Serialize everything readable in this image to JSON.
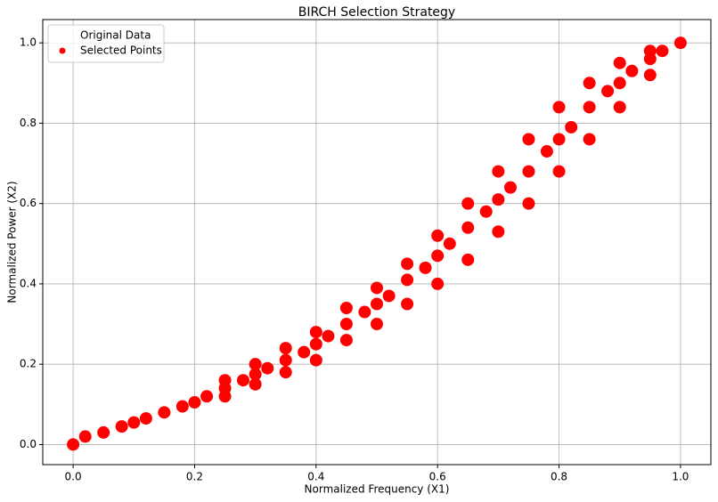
{
  "chart_data": {
    "type": "scatter",
    "title": "BIRCH Selection Strategy",
    "x_label": "Normalized Frequency (X1)",
    "y_label": "Normalized Power (X2)",
    "xlim": [
      -0.05,
      1.05
    ],
    "ylim": [
      -0.05,
      1.058
    ],
    "xticks": [
      {
        "value": 0,
        "label": "0.0"
      },
      0.2,
      0.4,
      0.6,
      0.8,
      {
        "value": 1,
        "label": "1.0"
      }
    ],
    "yticks": [
      {
        "value": 0,
        "label": "0.0"
      },
      0.2,
      0.4,
      0.6,
      0.8,
      {
        "value": 1,
        "label": "1.0"
      }
    ],
    "grid": true,
    "legend": "upper left",
    "series": [
      {
        "name": "Original Data",
        "color": "#ffffff",
        "x": [],
        "y": []
      },
      {
        "name": "Selected Points",
        "color": "#ff0000",
        "x": [
          0,
          0.02,
          0.05,
          0.08,
          0.1,
          0.12,
          0.15,
          0.18,
          0.2,
          0.22,
          0.25,
          0.28,
          0.3,
          0.32,
          0.35,
          0.38,
          0.4,
          0.42,
          0.45,
          0.48,
          0.5,
          0.52,
          0.55,
          0.58,
          0.6,
          0.62,
          0.65,
          0.68,
          0.7,
          0.72,
          0.75,
          0.78,
          0.8,
          0.82,
          0.85,
          0.88,
          0.9,
          0.92,
          0.95,
          0.97,
          1.0,
          0.25,
          0.3,
          0.35,
          0.4,
          0.45,
          0.5,
          0.55,
          0.6,
          0.65,
          0.7,
          0.75,
          0.8,
          0.85,
          0.9,
          0.95,
          0.25,
          0.3,
          0.35,
          0.4,
          0.45,
          0.5,
          0.55,
          0.6,
          0.65,
          0.7,
          0.75,
          0.8,
          0.85,
          0.9,
          0.95
        ],
        "y": [
          0,
          0.02,
          0.03,
          0.045,
          0.055,
          0.065,
          0.08,
          0.095,
          0.105,
          0.12,
          0.14,
          0.16,
          0.175,
          0.19,
          0.21,
          0.23,
          0.25,
          0.27,
          0.3,
          0.33,
          0.35,
          0.37,
          0.41,
          0.44,
          0.47,
          0.5,
          0.54,
          0.58,
          0.61,
          0.64,
          0.68,
          0.73,
          0.76,
          0.79,
          0.84,
          0.88,
          0.9,
          0.93,
          0.96,
          0.98,
          1.0,
          0.16,
          0.2,
          0.24,
          0.28,
          0.34,
          0.39,
          0.45,
          0.52,
          0.6,
          0.68,
          0.76,
          0.84,
          0.9,
          0.95,
          0.98,
          0.12,
          0.15,
          0.18,
          0.21,
          0.26,
          0.3,
          0.35,
          0.4,
          0.46,
          0.53,
          0.6,
          0.68,
          0.76,
          0.84,
          0.92
        ]
      }
    ]
  }
}
